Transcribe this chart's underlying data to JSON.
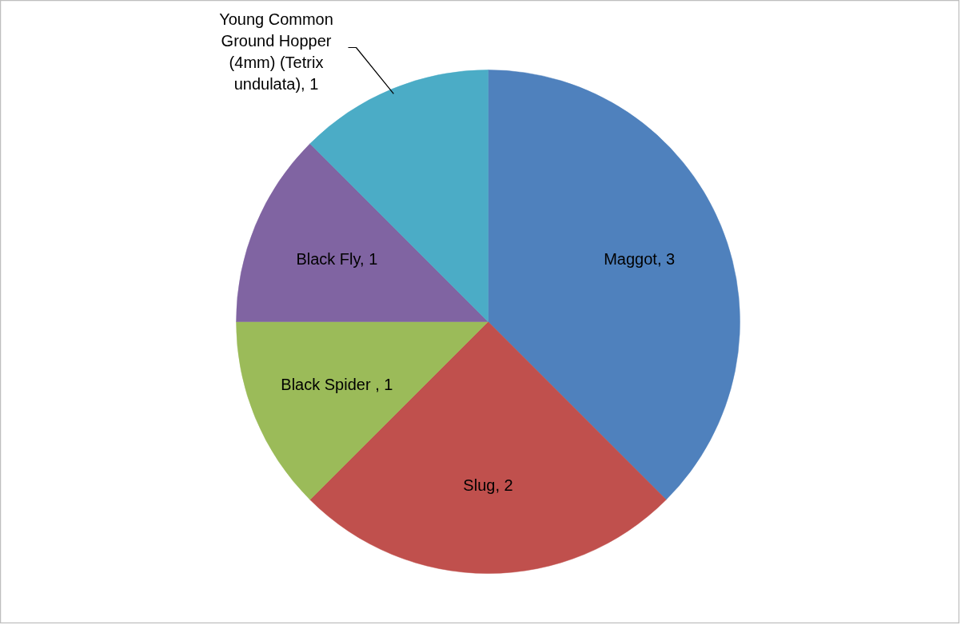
{
  "chart_data": {
    "type": "pie",
    "categories": [
      "Maggot",
      "Slug",
      "Black Spider ",
      "Black Fly",
      "Young Common Ground Hopper (4mm) (Tetrix undulata)"
    ],
    "values": [
      3,
      2,
      1,
      1,
      1
    ],
    "colors": [
      "#4f81bd",
      "#c0504d",
      "#9bbb59",
      "#8064a2",
      "#4bacc6"
    ],
    "value_labels": [
      ", 3",
      ", 2",
      ", 1",
      ", 1",
      ", 1"
    ]
  }
}
